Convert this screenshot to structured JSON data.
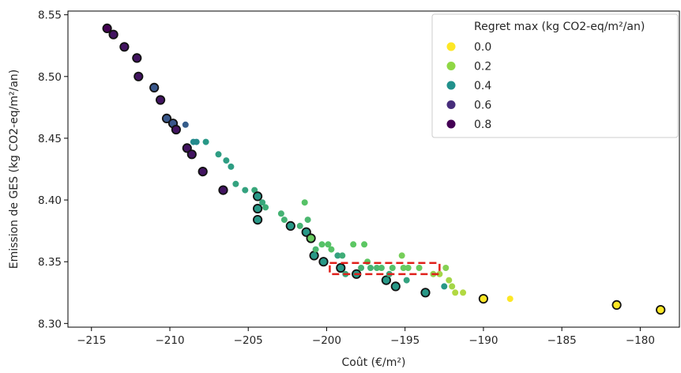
{
  "chart_data": {
    "type": "scatter",
    "xlabel": "Coût (€/m²)",
    "ylabel": "Emission de GES (kg CO2-eq/m²/an)",
    "xlim": [
      -216.5,
      -177.5
    ],
    "ylim": [
      8.297,
      8.553
    ],
    "x_ticks": [
      -215,
      -210,
      -205,
      -200,
      -195,
      -190,
      -185,
      -180
    ],
    "x_tick_labels": [
      "−215",
      "−210",
      "−205",
      "−200",
      "−195",
      "−190",
      "−185",
      "−180"
    ],
    "y_ticks": [
      8.3,
      8.35,
      8.4,
      8.45,
      8.5,
      8.55
    ],
    "y_tick_labels": [
      "8.30",
      "8.35",
      "8.40",
      "8.45",
      "8.50",
      "8.55"
    ],
    "grid": false,
    "legend": {
      "title": "Regret max (kg CO2-eq/m²/an)",
      "placement": "top-right",
      "entries": [
        {
          "label": "0.0",
          "color": "#fde725"
        },
        {
          "label": "0.2",
          "color": "#8fd744"
        },
        {
          "label": "0.4",
          "color": "#21918c"
        },
        {
          "label": "0.6",
          "color": "#472d7b"
        },
        {
          "label": "0.8",
          "color": "#440154"
        }
      ]
    },
    "color_scale": {
      "min": 0.0,
      "max": 0.85,
      "colormap": "viridis"
    },
    "highlight_box": {
      "x": [
        -199.8,
        -192.8
      ],
      "y": [
        8.34,
        8.349
      ],
      "color": "#e0201b",
      "style": "dashed"
    },
    "points": [
      {
        "x": -214.0,
        "y": 8.539,
        "regret": 0.85,
        "outlined": true
      },
      {
        "x": -213.6,
        "y": 8.534,
        "regret": 0.8,
        "outlined": true
      },
      {
        "x": -212.9,
        "y": 8.524,
        "regret": 0.8,
        "outlined": true
      },
      {
        "x": -212.1,
        "y": 8.515,
        "regret": 0.8,
        "outlined": true
      },
      {
        "x": -212.0,
        "y": 8.5,
        "regret": 0.8,
        "outlined": true
      },
      {
        "x": -211.0,
        "y": 8.491,
        "regret": 0.62,
        "outlined": true
      },
      {
        "x": -210.6,
        "y": 8.481,
        "regret": 0.8,
        "outlined": true
      },
      {
        "x": -210.2,
        "y": 8.466,
        "regret": 0.62,
        "outlined": true
      },
      {
        "x": -209.8,
        "y": 8.462,
        "regret": 0.62,
        "outlined": true
      },
      {
        "x": -209.6,
        "y": 8.457,
        "regret": 0.8,
        "outlined": true
      },
      {
        "x": -209.0,
        "y": 8.461,
        "regret": 0.6,
        "outlined": false
      },
      {
        "x": -208.9,
        "y": 8.442,
        "regret": 0.8,
        "outlined": true
      },
      {
        "x": -208.6,
        "y": 8.437,
        "regret": 0.8,
        "outlined": true
      },
      {
        "x": -208.5,
        "y": 8.447,
        "regret": 0.45,
        "outlined": false
      },
      {
        "x": -208.3,
        "y": 8.447,
        "regret": 0.45,
        "outlined": false
      },
      {
        "x": -207.9,
        "y": 8.423,
        "regret": 0.8,
        "outlined": true
      },
      {
        "x": -207.7,
        "y": 8.447,
        "regret": 0.4,
        "outlined": false
      },
      {
        "x": -206.9,
        "y": 8.437,
        "regret": 0.38,
        "outlined": false
      },
      {
        "x": -206.6,
        "y": 8.408,
        "regret": 0.8,
        "outlined": true
      },
      {
        "x": -206.4,
        "y": 8.432,
        "regret": 0.38,
        "outlined": false
      },
      {
        "x": -206.1,
        "y": 8.427,
        "regret": 0.38,
        "outlined": false
      },
      {
        "x": -205.8,
        "y": 8.413,
        "regret": 0.36,
        "outlined": false
      },
      {
        "x": -205.2,
        "y": 8.408,
        "regret": 0.36,
        "outlined": false
      },
      {
        "x": -204.6,
        "y": 8.408,
        "regret": 0.34,
        "outlined": false
      },
      {
        "x": -204.4,
        "y": 8.403,
        "regret": 0.4,
        "outlined": true
      },
      {
        "x": -204.4,
        "y": 8.393,
        "regret": 0.4,
        "outlined": true
      },
      {
        "x": -204.4,
        "y": 8.384,
        "regret": 0.4,
        "outlined": true
      },
      {
        "x": -204.1,
        "y": 8.398,
        "regret": 0.34,
        "outlined": false
      },
      {
        "x": -203.9,
        "y": 8.394,
        "regret": 0.32,
        "outlined": false
      },
      {
        "x": -202.9,
        "y": 8.389,
        "regret": 0.3,
        "outlined": false
      },
      {
        "x": -202.7,
        "y": 8.384,
        "regret": 0.3,
        "outlined": false
      },
      {
        "x": -202.3,
        "y": 8.379,
        "regret": 0.4,
        "outlined": true
      },
      {
        "x": -201.7,
        "y": 8.379,
        "regret": 0.3,
        "outlined": false
      },
      {
        "x": -201.4,
        "y": 8.398,
        "regret": 0.24,
        "outlined": false
      },
      {
        "x": -201.3,
        "y": 8.374,
        "regret": 0.4,
        "outlined": true
      },
      {
        "x": -201.2,
        "y": 8.384,
        "regret": 0.28,
        "outlined": false
      },
      {
        "x": -201.0,
        "y": 8.369,
        "regret": 0.2,
        "outlined": true
      },
      {
        "x": -200.8,
        "y": 8.355,
        "regret": 0.4,
        "outlined": true
      },
      {
        "x": -200.7,
        "y": 8.36,
        "regret": 0.28,
        "outlined": false
      },
      {
        "x": -200.3,
        "y": 8.364,
        "regret": 0.24,
        "outlined": false
      },
      {
        "x": -200.2,
        "y": 8.35,
        "regret": 0.4,
        "outlined": true
      },
      {
        "x": -199.9,
        "y": 8.364,
        "regret": 0.24,
        "outlined": false
      },
      {
        "x": -199.7,
        "y": 8.36,
        "regret": 0.24,
        "outlined": false
      },
      {
        "x": -199.3,
        "y": 8.355,
        "regret": 0.36,
        "outlined": false
      },
      {
        "x": -199.1,
        "y": 8.345,
        "regret": 0.4,
        "outlined": true
      },
      {
        "x": -199.0,
        "y": 8.355,
        "regret": 0.32,
        "outlined": false
      },
      {
        "x": -198.8,
        "y": 8.34,
        "regret": 0.34,
        "outlined": false
      },
      {
        "x": -198.3,
        "y": 8.364,
        "regret": 0.22,
        "outlined": false
      },
      {
        "x": -198.1,
        "y": 8.34,
        "regret": 0.4,
        "outlined": true
      },
      {
        "x": -197.8,
        "y": 8.345,
        "regret": 0.3,
        "outlined": false
      },
      {
        "x": -197.6,
        "y": 8.364,
        "regret": 0.22,
        "outlined": false
      },
      {
        "x": -197.4,
        "y": 8.35,
        "regret": 0.22,
        "outlined": false
      },
      {
        "x": -197.2,
        "y": 8.345,
        "regret": 0.3,
        "outlined": false
      },
      {
        "x": -196.8,
        "y": 8.345,
        "regret": 0.28,
        "outlined": false
      },
      {
        "x": -196.5,
        "y": 8.345,
        "regret": 0.26,
        "outlined": false
      },
      {
        "x": -196.2,
        "y": 8.335,
        "regret": 0.4,
        "outlined": true
      },
      {
        "x": -196.0,
        "y": 8.34,
        "regret": 0.34,
        "outlined": false
      },
      {
        "x": -195.8,
        "y": 8.345,
        "regret": 0.24,
        "outlined": false
      },
      {
        "x": -195.6,
        "y": 8.33,
        "regret": 0.4,
        "outlined": true
      },
      {
        "x": -195.2,
        "y": 8.355,
        "regret": 0.18,
        "outlined": false
      },
      {
        "x": -195.1,
        "y": 8.345,
        "regret": 0.2,
        "outlined": false
      },
      {
        "x": -194.9,
        "y": 8.335,
        "regret": 0.36,
        "outlined": false
      },
      {
        "x": -194.8,
        "y": 8.345,
        "regret": 0.2,
        "outlined": false
      },
      {
        "x": -194.1,
        "y": 8.345,
        "regret": 0.2,
        "outlined": false
      },
      {
        "x": -193.7,
        "y": 8.325,
        "regret": 0.4,
        "outlined": true
      },
      {
        "x": -193.2,
        "y": 8.34,
        "regret": 0.14,
        "outlined": false
      },
      {
        "x": -192.8,
        "y": 8.34,
        "regret": 0.12,
        "outlined": false
      },
      {
        "x": -192.5,
        "y": 8.33,
        "regret": 0.4,
        "outlined": false
      },
      {
        "x": -192.4,
        "y": 8.345,
        "regret": 0.16,
        "outlined": false
      },
      {
        "x": -192.2,
        "y": 8.335,
        "regret": 0.12,
        "outlined": false
      },
      {
        "x": -192.0,
        "y": 8.33,
        "regret": 0.12,
        "outlined": false
      },
      {
        "x": -191.8,
        "y": 8.325,
        "regret": 0.1,
        "outlined": false
      },
      {
        "x": -191.3,
        "y": 8.325,
        "regret": 0.1,
        "outlined": false
      },
      {
        "x": -190.0,
        "y": 8.32,
        "regret": 0.0,
        "outlined": true
      },
      {
        "x": -188.3,
        "y": 8.32,
        "regret": 0.0,
        "outlined": false
      },
      {
        "x": -181.5,
        "y": 8.315,
        "regret": 0.0,
        "outlined": true
      },
      {
        "x": -178.7,
        "y": 8.311,
        "regret": 0.0,
        "outlined": true
      }
    ]
  }
}
